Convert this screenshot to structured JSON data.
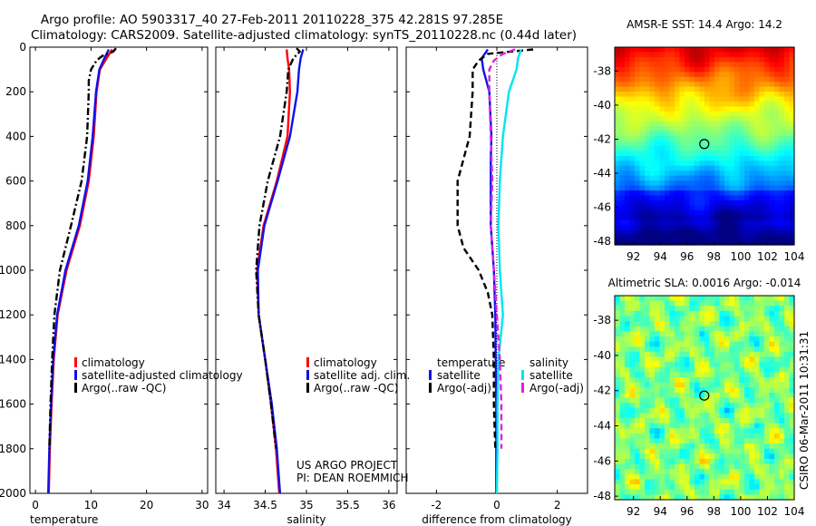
{
  "figure": {
    "title_line1": "Argo profile: AO 5903317_40 27-Feb-2011 20110228_375 42.281S 97.285E",
    "title_line2": "Climatology: CARS2009. Satellite-adjusted climatology: synTS_20110228.nc (0.44d later)",
    "credit_line1": "US ARGO PROJECT",
    "credit_line2": "PI: DEAN ROEMMICH",
    "stamp": "CSIRO 06-Mar-2011 10:31:31"
  },
  "colors": {
    "climatology": "#ff0000",
    "satellite": "#1010ee",
    "argo": "#000000",
    "sat_salinity": "#00e5ee",
    "argo_salinity": "#e020e0"
  },
  "chart_data": [
    {
      "type": "line",
      "id": "temperature",
      "xlabel": "temperature",
      "ylabel": "",
      "xlim": [
        -1,
        31
      ],
      "ylim": [
        2000,
        0
      ],
      "xticks": [
        0,
        10,
        20,
        30
      ],
      "yticks": [
        0,
        200,
        400,
        600,
        800,
        1000,
        1200,
        1400,
        1600,
        1800,
        2000
      ],
      "legend": [
        "climatology",
        "satellite-adjusted climatology",
        "Argo(..raw -QC)"
      ],
      "series": [
        {
          "name": "climatology",
          "style": "solid",
          "color_key": "climatology",
          "depth": [
            10,
            50,
            100,
            200,
            400,
            600,
            800,
            1000,
            1200,
            1400,
            1600,
            1800,
            2000
          ],
          "values": [
            13.8,
            12.8,
            11.6,
            11.0,
            10.5,
            9.6,
            8.0,
            5.6,
            4.0,
            3.3,
            2.9,
            2.6,
            2.4
          ]
        },
        {
          "name": "satellite-adjusted climatology",
          "style": "solid",
          "color_key": "satellite",
          "depth": [
            10,
            50,
            100,
            200,
            400,
            600,
            800,
            1000,
            1200,
            1400,
            1600,
            1800,
            2000
          ],
          "values": [
            13.2,
            12.4,
            11.5,
            10.9,
            10.3,
            9.4,
            7.8,
            5.4,
            3.9,
            3.2,
            2.8,
            2.5,
            2.3
          ]
        },
        {
          "name": "Argo(..raw -QC)",
          "style": "dashdot",
          "color_key": "argo",
          "depth": [
            5,
            20,
            40,
            60,
            100,
            150,
            200,
            400,
            600,
            800,
            1000,
            1200,
            1400,
            1600,
            1800
          ],
          "values": [
            14.5,
            14.0,
            12.0,
            11.0,
            10.0,
            9.6,
            9.6,
            9.3,
            8.3,
            6.4,
            4.4,
            3.4,
            3.0,
            2.7,
            2.5
          ]
        }
      ]
    },
    {
      "type": "line",
      "id": "salinity",
      "xlabel": "salinity",
      "ylabel": "",
      "xlim": [
        33.9,
        36.1
      ],
      "ylim": [
        2000,
        0
      ],
      "xticks": [
        34,
        34.5,
        35,
        35.5,
        36
      ],
      "xtick_labels": [
        "34",
        "34.5",
        "35",
        "35.5",
        "36"
      ],
      "legend": [
        "climatology",
        "satellite adj. clim.",
        "Argo(..raw -QC)"
      ],
      "series": [
        {
          "name": "climatology",
          "style": "solid",
          "color_key": "climatology",
          "depth": [
            10,
            50,
            100,
            200,
            400,
            600,
            800,
            1000,
            1200,
            1400,
            1600,
            1800,
            2000
          ],
          "values": [
            34.76,
            34.77,
            34.79,
            34.8,
            34.77,
            34.64,
            34.48,
            34.4,
            34.42,
            34.5,
            34.57,
            34.63,
            34.67
          ]
        },
        {
          "name": "satellite adj. clim.",
          "style": "solid",
          "color_key": "satellite",
          "depth": [
            10,
            50,
            100,
            200,
            400,
            600,
            800,
            1000,
            1200,
            1400,
            1600,
            1800,
            2000
          ],
          "values": [
            34.96,
            34.93,
            34.91,
            34.89,
            34.8,
            34.65,
            34.49,
            34.41,
            34.42,
            34.5,
            34.58,
            34.64,
            34.68
          ]
        },
        {
          "name": "Argo(..raw -QC)",
          "style": "dashdot",
          "color_key": "argo",
          "depth": [
            5,
            20,
            50,
            100,
            200,
            400,
            600,
            800,
            1000,
            1200,
            1400,
            1600,
            1800
          ],
          "values": [
            34.88,
            34.92,
            34.84,
            34.78,
            34.76,
            34.68,
            34.53,
            34.43,
            34.39,
            34.42,
            34.5,
            34.57,
            34.63
          ]
        }
      ]
    },
    {
      "type": "line",
      "id": "difference",
      "xlabel": "difference from climatology",
      "ylabel": "",
      "xlim": [
        -3,
        3
      ],
      "ylim": [
        2000,
        0
      ],
      "xticks": [
        -2,
        0,
        2
      ],
      "legend_temperature_title": "temperature",
      "legend_salinity_title": "salinity",
      "legend": [
        "satellite",
        "Argo(-adj)",
        "satellite",
        "Argo(-adj)"
      ],
      "series": [
        {
          "name": "temperature satellite",
          "style": "solid",
          "color_key": "satellite",
          "depth": [
            10,
            50,
            100,
            200,
            400,
            500,
            800,
            1000,
            1200,
            1400,
            1600,
            1800,
            2000
          ],
          "values": [
            -0.3,
            -0.5,
            -0.45,
            -0.25,
            -0.18,
            -0.2,
            -0.2,
            -0.1,
            -0.05,
            -0.04,
            -0.02,
            -0.02,
            -0.02
          ]
        },
        {
          "name": "temperature Argo(-adj)",
          "style": "dashed",
          "color_key": "argo",
          "depth": [
            10,
            30,
            60,
            100,
            200,
            400,
            600,
            800,
            900,
            1000,
            1100,
            1200,
            1400,
            1600,
            1800
          ],
          "values": [
            1.2,
            -0.3,
            -0.6,
            -0.8,
            -0.8,
            -0.9,
            -1.3,
            -1.3,
            -1.1,
            -0.6,
            -0.3,
            -0.15,
            -0.1,
            -0.1,
            -0.05
          ]
        },
        {
          "name": "salinity satellite",
          "style": "solid",
          "color_key": "sat_salinity",
          "depth": [
            10,
            50,
            100,
            200,
            400,
            600,
            800,
            1000,
            1200,
            1400,
            1600,
            1800,
            2000
          ],
          "values": [
            0.8,
            0.7,
            0.65,
            0.4,
            0.2,
            0.1,
            0.05,
            0.1,
            0.2,
            0.05,
            0.02,
            0.02,
            0.0
          ]
        },
        {
          "name": "salinity Argo(-adj)",
          "style": "dashed",
          "color_key": "argo_salinity",
          "depth": [
            10,
            30,
            60,
            100,
            200,
            400,
            600,
            800,
            1000,
            1200,
            1400,
            1600,
            1800
          ],
          "values": [
            0.6,
            0.2,
            -0.1,
            -0.25,
            -0.25,
            -0.2,
            -0.15,
            -0.2,
            -0.1,
            0.0,
            0.1,
            0.15,
            0.15
          ]
        }
      ]
    },
    {
      "type": "heatmap",
      "id": "sst",
      "title": "AMSR-E SST: 14.4 Argo: 14.2",
      "xlim": [
        90.6,
        104
      ],
      "ylim": [
        -48.2,
        -36.6
      ],
      "xticks": [
        92,
        94,
        96,
        98,
        100,
        102,
        104
      ],
      "yticks": [
        -38,
        -40,
        -42,
        -44,
        -46,
        -48
      ],
      "marker": {
        "lon": 97.285,
        "lat": -42.281
      }
    },
    {
      "type": "heatmap",
      "id": "sla",
      "title": "Altimetric SLA: 0.0016 Argo: -0.014",
      "xlim": [
        90.6,
        104
      ],
      "ylim": [
        -48.2,
        -36.6
      ],
      "xticks": [
        92,
        94,
        96,
        98,
        100,
        102,
        104
      ],
      "yticks": [
        -38,
        -40,
        -42,
        -44,
        -46,
        -48
      ],
      "marker": {
        "lon": 97.285,
        "lat": -42.281
      }
    }
  ]
}
